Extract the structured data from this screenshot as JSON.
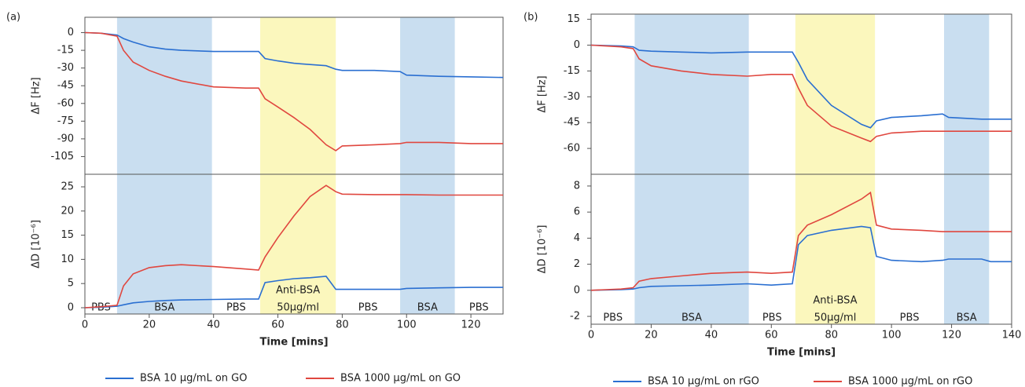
{
  "chart_data": [
    {
      "type": "line",
      "label": "(a)",
      "ylabel": "ΔF  [Hz]",
      "ylabel_color": "#2b2bd0",
      "xlim": [
        0,
        130
      ],
      "ylim": [
        -120,
        13
      ],
      "yticks": [
        0,
        -15,
        -30,
        -45,
        -60,
        -75,
        -90,
        -105
      ],
      "x": [
        0,
        5,
        10,
        12,
        15,
        20,
        25,
        30,
        40,
        50,
        54,
        56,
        60,
        65,
        70,
        75,
        78,
        80,
        90,
        98,
        100,
        110,
        120,
        130
      ],
      "series": [
        {
          "color": "#2a6fd1",
          "values": [
            0,
            -0.5,
            -2,
            -5,
            -8,
            -12,
            -14,
            -15,
            -16,
            -16,
            -16,
            -22,
            -24,
            -26,
            -27,
            -28,
            -31,
            -32,
            -32,
            -33,
            -36,
            -37,
            -37.5,
            -38
          ]
        },
        {
          "color": "#e0473f",
          "values": [
            0,
            -0.5,
            -3,
            -15,
            -25,
            -32,
            -37,
            -41,
            -46,
            -47,
            -47,
            -56,
            -63,
            -72,
            -82,
            -95,
            -100,
            -96,
            -95,
            -94,
            -93,
            -93,
            -94,
            -94
          ]
        }
      ],
      "regions": [
        {
          "start": 10,
          "end": 39.5,
          "color": "#c9def0"
        },
        {
          "start": 54.5,
          "end": 78,
          "color": "#fbf7bd"
        },
        {
          "start": 98,
          "end": 115,
          "color": "#c9def0"
        }
      ]
    },
    {
      "type": "line",
      "ylabel": "ΔD [10⁻⁶]",
      "ylabel_color": "#e0302a",
      "xlim": [
        0,
        130
      ],
      "ylim": [
        -1.3,
        27.6
      ],
      "yticks": [
        0,
        5,
        10,
        15,
        20,
        25
      ],
      "xticks": [
        0,
        20,
        40,
        60,
        80,
        100,
        120
      ],
      "xlabel": "Time [mins]",
      "x": [
        0,
        5,
        10,
        12,
        15,
        20,
        25,
        30,
        40,
        50,
        54,
        56,
        60,
        65,
        70,
        75,
        78,
        80,
        90,
        98,
        100,
        110,
        120,
        130
      ],
      "series": [
        {
          "name": "BSA 10 μg/mL on GO",
          "color": "#2a6fd1",
          "values": [
            0,
            0.1,
            0.3,
            0.6,
            1,
            1.3,
            1.5,
            1.6,
            1.7,
            1.8,
            1.8,
            5.2,
            5.6,
            6,
            6.2,
            6.5,
            3.8,
            3.8,
            3.8,
            3.8,
            4,
            4.1,
            4.2,
            4.2
          ]
        },
        {
          "name": "BSA 1000 μg/mL on GO",
          "color": "#e0473f",
          "values": [
            0,
            0.2,
            0.5,
            4.5,
            7,
            8.3,
            8.7,
            8.9,
            8.5,
            8,
            7.8,
            10.5,
            14.5,
            19,
            23,
            25.3,
            24,
            23.5,
            23.4,
            23.4,
            23.4,
            23.3,
            23.3,
            23.3
          ]
        }
      ],
      "regions": [
        {
          "start": 0,
          "end": 10,
          "label": "PBS"
        },
        {
          "start": 10,
          "end": 39.5,
          "label": "BSA",
          "color": "#c9def0"
        },
        {
          "start": 39.5,
          "end": 54.5,
          "label": "PBS"
        },
        {
          "start": 54.5,
          "end": 78,
          "label": "Anti-BSA",
          "sublabel": "50µg/ml",
          "color": "#fbf7bd"
        },
        {
          "start": 78,
          "end": 98,
          "label": "PBS"
        },
        {
          "start": 98,
          "end": 115,
          "label": "BSA",
          "color": "#c9def0"
        },
        {
          "start": 115,
          "end": 130,
          "label": "PBS"
        }
      ]
    },
    {
      "type": "line",
      "label": "(b)",
      "ylabel": "ΔF  [Hz]",
      "ylabel_color": "#2b2bd0",
      "xlim": [
        0,
        140
      ],
      "ylim": [
        -75,
        18
      ],
      "yticks": [
        15,
        0,
        -15,
        -30,
        -45,
        -60
      ],
      "x": [
        0,
        10,
        14,
        16,
        20,
        30,
        40,
        52,
        60,
        67,
        69,
        72,
        80,
        90,
        93,
        95,
        100,
        110,
        117,
        119,
        130,
        133,
        140
      ],
      "series": [
        {
          "color": "#2a6fd1",
          "values": [
            0,
            -0.5,
            -1,
            -3,
            -3.5,
            -4,
            -4.5,
            -4,
            -4,
            -4,
            -10,
            -20,
            -35,
            -46,
            -48,
            -44,
            -42,
            -41,
            -40,
            -42,
            -43,
            -43,
            -43
          ]
        },
        {
          "color": "#e0473f",
          "values": [
            0,
            -1,
            -2,
            -8,
            -12,
            -15,
            -17,
            -18,
            -17,
            -17,
            -25,
            -35,
            -47,
            -54,
            -56,
            -53,
            -51,
            -50,
            -50,
            -50,
            -50,
            -50,
            -50
          ]
        }
      ],
      "regions": [
        {
          "start": 14.5,
          "end": 52.5,
          "color": "#c9def0"
        },
        {
          "start": 68,
          "end": 94.5,
          "color": "#fbf7bd"
        },
        {
          "start": 117.5,
          "end": 132.5,
          "color": "#c9def0"
        }
      ]
    },
    {
      "type": "line",
      "ylabel": "ΔD [10⁻⁶]",
      "ylabel_color": "#e0302a",
      "xlim": [
        0,
        140
      ],
      "ylim": [
        -2.6,
        8.9
      ],
      "yticks": [
        -2,
        0,
        2,
        4,
        6,
        8
      ],
      "xticks": [
        0,
        20,
        40,
        60,
        80,
        100,
        120,
        140
      ],
      "xlabel": "Time [mins]",
      "x": [
        0,
        10,
        14,
        16,
        20,
        30,
        40,
        52,
        60,
        67,
        69,
        72,
        80,
        90,
        93,
        95,
        100,
        110,
        117,
        119,
        130,
        133,
        140
      ],
      "series": [
        {
          "name": "BSA 10 μg/mL on rGO",
          "color": "#2a6fd1",
          "values": [
            0,
            0.05,
            0.1,
            0.2,
            0.3,
            0.35,
            0.4,
            0.5,
            0.4,
            0.5,
            3.5,
            4.2,
            4.6,
            4.9,
            4.8,
            2.6,
            2.3,
            2.2,
            2.3,
            2.4,
            2.4,
            2.2,
            2.2
          ]
        },
        {
          "name": "BSA 1000 μg/mL on rGO",
          "color": "#e0473f",
          "values": [
            0,
            0.1,
            0.2,
            0.7,
            0.9,
            1.1,
            1.3,
            1.4,
            1.3,
            1.4,
            4.2,
            5,
            5.8,
            7,
            7.5,
            5,
            4.7,
            4.6,
            4.5,
            4.5,
            4.5,
            4.5,
            4.5
          ]
        }
      ],
      "regions": [
        {
          "start": 0,
          "end": 14.5,
          "label": "PBS"
        },
        {
          "start": 14.5,
          "end": 52.5,
          "label": "BSA",
          "color": "#c9def0"
        },
        {
          "start": 52.5,
          "end": 68,
          "label": "PBS"
        },
        {
          "start": 68,
          "end": 94.5,
          "label": "Anti-BSA",
          "sublabel": "50µg/ml",
          "color": "#fbf7bd"
        },
        {
          "start": 94.5,
          "end": 117.5,
          "label": "PBS"
        },
        {
          "start": 117.5,
          "end": 132.5,
          "label": "BSA",
          "color": "#c9def0"
        }
      ]
    }
  ]
}
